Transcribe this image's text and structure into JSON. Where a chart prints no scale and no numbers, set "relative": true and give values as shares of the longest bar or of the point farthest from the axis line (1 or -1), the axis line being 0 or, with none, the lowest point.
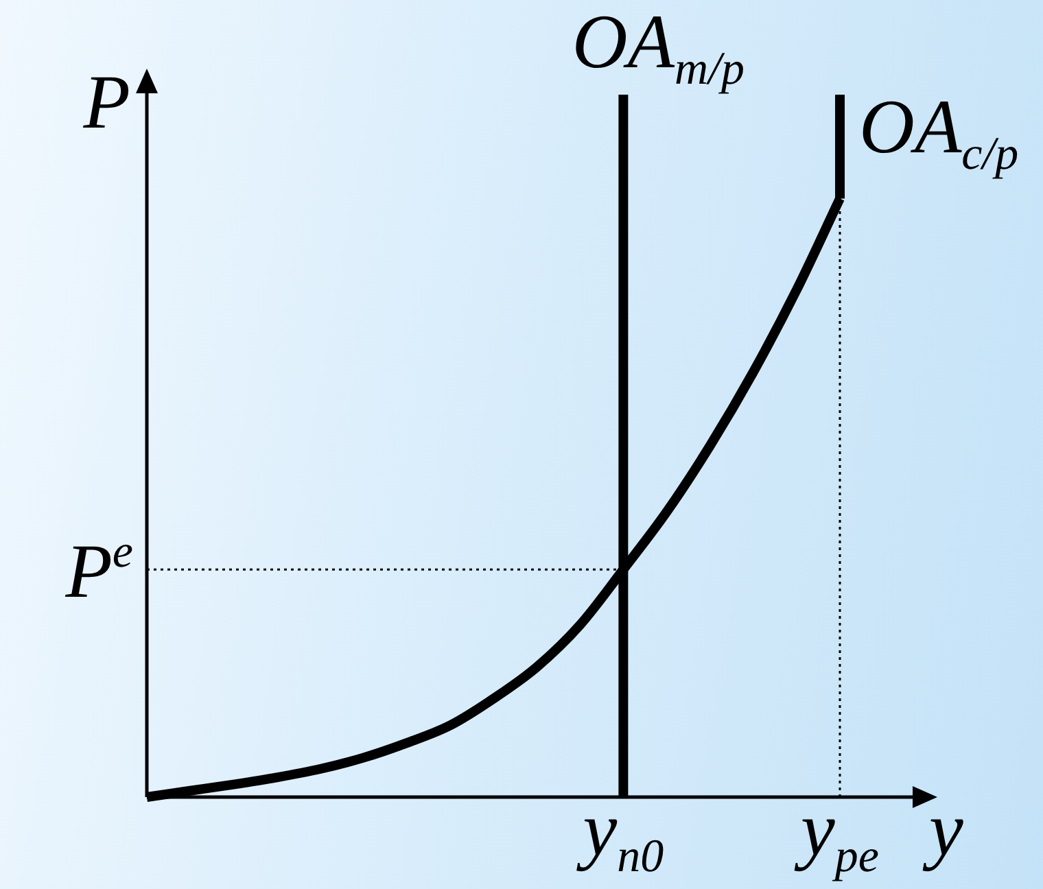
{
  "chart_data": {
    "type": "line",
    "relative": true,
    "xlabel": "y",
    "ylabel": "P",
    "categories": [
      null,
      null,
      null,
      null,
      null,
      null,
      null,
      null,
      null,
      null,
      null,
      "y$_{n0}$",
      null,
      null,
      null,
      null,
      "y$_{pe}$"
    ],
    "line_style": "solid",
    "series": [
      {
        "color": "#000000",
        "values": [
          0,
          0.009,
          0.018,
          0.028,
          0.04,
          0.056,
          0.077,
          0.102,
          0.14,
          0.185,
          0.245,
          0.324,
          0.406,
          0.5,
          0.605,
          0.722,
          0.852
        ]
      },
      {
        "name": "OA$_{m/p}$",
        "color": "#000000",
        "x": [
          "y$_{n0}$",
          "y$_{n0}$"
        ],
        "values": [
          0,
          1
        ]
      },
      {
        "name": "OA$_{c/p}$",
        "color": "#000000",
        "x": [
          "y$_{pe}$",
          "y$_{pe}$"
        ],
        "values": [
          0.852,
          1
        ]
      }
    ],
    "ref_lines": [
      {
        "axis": "y",
        "value": 0.324,
        "label": "P$^{e}$",
        "color": "#000000",
        "line_style": "dotted"
      },
      {
        "axis": "x",
        "value": "y$_{pe}$",
        "color": "#000000",
        "line_style": "dotted"
      }
    ]
  }
}
